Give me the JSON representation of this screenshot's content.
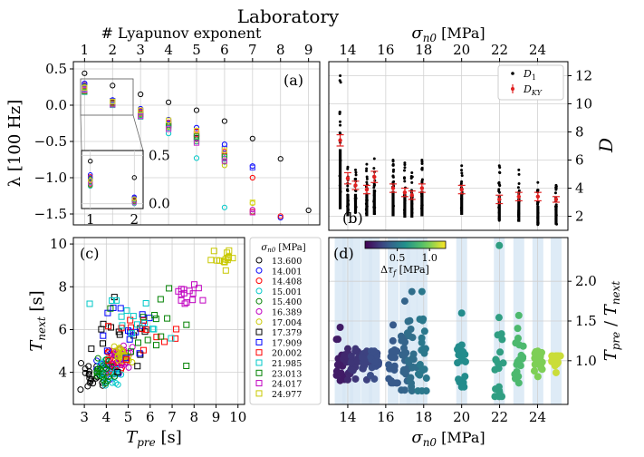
{
  "figure": {
    "supertitle": "Laboratory"
  },
  "chart_data": [
    {
      "panel": "(a)",
      "type": "scatter",
      "title": "",
      "xlabel": "# Lyapunov exponent",
      "ylabel": "λ [100 Hz]",
      "x_ticks": [
        "1",
        "2",
        "3",
        "4",
        "5",
        "6",
        "7",
        "8",
        "9"
      ],
      "y_ticks": [
        "0.5",
        "0.0",
        "−0.5",
        "−1.0",
        "−1.5"
      ],
      "xlim": [
        0.6,
        9.4
      ],
      "ylim": [
        -1.65,
        0.6
      ],
      "grid": true,
      "x": [
        1,
        2,
        3,
        4,
        5,
        6,
        7,
        8,
        9
      ],
      "series": [
        {
          "name": "13.600",
          "color": "#000000",
          "values": [
            0.44,
            0.27,
            0.15,
            0.04,
            -0.07,
            -0.22,
            -0.46,
            -0.74,
            -1.45
          ]
        },
        {
          "name": "14.001",
          "color": "#0000ff",
          "values": [
            0.3,
            0.07,
            -0.05,
            -0.2,
            -0.31,
            -0.54,
            -0.84,
            -1.55,
            null
          ]
        },
        {
          "name": "14.408",
          "color": "#ff0000",
          "values": [
            0.28,
            0.06,
            -0.08,
            -0.24,
            -0.36,
            -0.64,
            -1.0,
            -1.53,
            null
          ]
        },
        {
          "name": "15.001",
          "color": "#00c8c8",
          "values": [
            0.22,
            0.02,
            -0.14,
            -0.39,
            -0.73,
            -1.41,
            null,
            null,
            null
          ]
        },
        {
          "name": "15.400",
          "color": "#008000",
          "values": [
            0.26,
            0.05,
            -0.1,
            -0.28,
            -0.47,
            -0.78,
            -1.47,
            null,
            null
          ]
        },
        {
          "name": "16.389",
          "color": "#c000c0",
          "values": [
            0.23,
            0.03,
            -0.11,
            -0.27,
            -0.46,
            -0.73,
            -1.44,
            null,
            null
          ]
        },
        {
          "name": "17.004",
          "color": "#c8c800",
          "values": [
            0.25,
            0.04,
            -0.12,
            -0.3,
            -0.5,
            -0.83,
            -1.35,
            null,
            null
          ]
        },
        {
          "name": "17.379",
          "color": "#222222",
          "values": [
            0.24,
            0.04,
            -0.13,
            -0.28,
            -0.45,
            -0.68,
            null,
            null,
            null
          ]
        },
        {
          "name": "17.909",
          "color": "#3333ff",
          "values": [
            0.27,
            0.06,
            -0.09,
            -0.25,
            -0.4,
            -0.6,
            -0.86,
            null,
            null
          ]
        },
        {
          "name": "20.002",
          "color": "#ff3333",
          "values": [
            0.2,
            0.03,
            -0.1,
            -0.24,
            -0.4,
            -0.68,
            -1.47,
            null,
            null
          ]
        },
        {
          "name": "21.985",
          "color": "#33aaaa",
          "values": [
            0.18,
            0.0,
            -0.16,
            -0.31,
            -0.5,
            -0.74,
            null,
            null,
            null
          ]
        },
        {
          "name": "23.013",
          "color": "#22aa22",
          "values": [
            0.19,
            0.02,
            -0.13,
            -0.28,
            -0.43,
            -0.71,
            null,
            null,
            null
          ]
        },
        {
          "name": "24.017",
          "color": "#cc33cc",
          "values": [
            0.21,
            0.01,
            -0.15,
            -0.33,
            -0.52,
            -0.77,
            -1.48,
            null,
            null
          ]
        },
        {
          "name": "24.977",
          "color": "#dddd33",
          "values": [
            0.24,
            0.05,
            -0.07,
            -0.21,
            -0.35,
            -0.62,
            -1.34,
            null,
            null
          ]
        }
      ],
      "inset": {
        "x_ticks": [
          "1",
          "2"
        ],
        "y_ticks": [
          "0.5",
          "0.0"
        ],
        "xlim": [
          0.8,
          2.2
        ],
        "ylim": [
          -0.05,
          0.55
        ]
      }
    },
    {
      "panel": "(b)",
      "type": "scatter",
      "title": "",
      "xlabel": "σn0 [MPa]",
      "ylabel": "D",
      "x_ticks": [
        "14",
        "16",
        "18",
        "20",
        "22",
        "24"
      ],
      "y_ticks": [
        "2",
        "4",
        "6",
        "8",
        "10",
        "12"
      ],
      "xlim": [
        13.0,
        25.6
      ],
      "ylim": [
        1.0,
        13.0
      ],
      "grid": true,
      "legend": [
        "D1",
        "DKY"
      ],
      "legend_position": "top-right",
      "x": [
        13.6,
        14.001,
        14.408,
        15.001,
        15.4,
        16.389,
        17.004,
        17.379,
        17.909,
        20.002,
        21.985,
        23.013,
        24.017,
        24.977
      ],
      "d1_min": [
        2.5,
        2.0,
        2.2,
        2.0,
        2.1,
        2.0,
        1.9,
        1.9,
        2.0,
        2.1,
        1.7,
        1.6,
        1.4,
        1.4
      ],
      "d1_max": [
        12.0,
        5.5,
        5.3,
        5.7,
        6.1,
        6.0,
        5.8,
        5.1,
        6.0,
        5.6,
        5.6,
        5.3,
        4.4,
        4.2
      ],
      "dky": [
        7.4,
        4.7,
        4.2,
        3.9,
        4.8,
        4.0,
        3.7,
        3.5,
        4.0,
        3.9,
        3.2,
        3.4,
        3.4,
        3.2
      ],
      "dky_err": [
        0.4,
        0.4,
        0.3,
        0.3,
        0.4,
        0.3,
        0.3,
        0.3,
        0.3,
        0.3,
        0.3,
        0.3,
        0.3,
        0.2
      ]
    },
    {
      "panel": "(c)",
      "type": "scatter",
      "title": "",
      "xlabel": "Tpre [s]",
      "ylabel": "Tnext [s]",
      "x_ticks": [
        "3",
        "4",
        "5",
        "6",
        "7",
        "8",
        "9",
        "10"
      ],
      "y_ticks": [
        "4",
        "6",
        "8",
        "10"
      ],
      "xlim": [
        2.5,
        10.3
      ],
      "ylim": [
        2.5,
        10.3
      ],
      "grid": true,
      "legend_title": "σn0 [MPa]",
      "legend_position": "right",
      "series": [
        {
          "name": "13.600",
          "marker": "o",
          "color": "#000000",
          "cx": 3.2,
          "cy": 3.8,
          "sx": 0.5,
          "sy": 0.5
        },
        {
          "name": "14.001",
          "marker": "o",
          "color": "#0000ff",
          "cx": 4.1,
          "cy": 4.3,
          "sx": 0.5,
          "sy": 0.5
        },
        {
          "name": "14.408",
          "marker": "o",
          "color": "#ff0000",
          "cx": 4.4,
          "cy": 4.6,
          "sx": 0.5,
          "sy": 0.5
        },
        {
          "name": "15.001",
          "marker": "o",
          "color": "#00c8c8",
          "cx": 4.0,
          "cy": 4.0,
          "sx": 0.5,
          "sy": 0.5
        },
        {
          "name": "15.400",
          "marker": "o",
          "color": "#008000",
          "cx": 3.9,
          "cy": 4.1,
          "sx": 0.5,
          "sy": 0.5
        },
        {
          "name": "16.389",
          "marker": "o",
          "color": "#c000c0",
          "cx": 4.6,
          "cy": 4.7,
          "sx": 0.4,
          "sy": 0.4
        },
        {
          "name": "17.004",
          "marker": "o",
          "color": "#c8c800",
          "cx": 4.7,
          "cy": 4.8,
          "sx": 0.4,
          "sy": 0.4
        },
        {
          "name": "17.379",
          "marker": "s",
          "color": "#000000",
          "cx": 4.5,
          "cy": 5.8,
          "sx": 1.5,
          "sy": 1.4
        },
        {
          "name": "17.909",
          "marker": "s",
          "color": "#0000ff",
          "cx": 5.1,
          "cy": 6.0,
          "sx": 1.1,
          "sy": 1.3
        },
        {
          "name": "20.002",
          "marker": "s",
          "color": "#ff0000",
          "cx": 5.5,
          "cy": 6.0,
          "sx": 1.5,
          "sy": 1.5
        },
        {
          "name": "21.985",
          "marker": "s",
          "color": "#00c8c8",
          "cx": 5.4,
          "cy": 6.3,
          "sx": 2.0,
          "sy": 2.0
        },
        {
          "name": "23.013",
          "marker": "s",
          "color": "#008000",
          "cx": 6.3,
          "cy": 6.6,
          "sx": 1.6,
          "sy": 1.6
        },
        {
          "name": "24.017",
          "marker": "s",
          "color": "#c000c0",
          "cx": 7.8,
          "cy": 7.6,
          "sx": 0.5,
          "sy": 0.5
        },
        {
          "name": "24.977",
          "marker": "s",
          "color": "#c8c800",
          "cx": 9.3,
          "cy": 9.3,
          "sx": 0.4,
          "sy": 0.4
        }
      ]
    },
    {
      "panel": "(d)",
      "type": "scatter",
      "title": "",
      "xlabel": "σn0 [MPa]",
      "ylabel": "Tpre / Tnext",
      "x_ticks": [
        "14",
        "16",
        "18",
        "20",
        "22",
        "24"
      ],
      "y_ticks": [
        "1.0",
        "1.5",
        "2.0"
      ],
      "xlim": [
        13.0,
        25.6
      ],
      "ylim": [
        0.45,
        2.55
      ],
      "grid": true,
      "colorbar_label": "Δτf [MPa]",
      "colorbar_ticks": [
        "0.5",
        "1.0"
      ],
      "colorbar_range": [
        0.0,
        1.25
      ],
      "x": [
        13.6,
        14.001,
        14.408,
        15.001,
        15.4,
        16.389,
        17.004,
        17.379,
        17.909,
        20.002,
        21.985,
        23.013,
        24.017,
        24.977
      ],
      "ratio_min": [
        0.75,
        0.76,
        0.77,
        0.76,
        0.77,
        0.72,
        0.63,
        0.62,
        0.62,
        0.67,
        0.55,
        0.72,
        0.8,
        0.85
      ],
      "ratio_max": [
        1.42,
        1.15,
        1.15,
        1.12,
        1.12,
        1.45,
        1.75,
        1.87,
        1.87,
        1.6,
        2.45,
        1.57,
        1.12,
        1.06
      ],
      "delta_tau_f": [
        0.1,
        0.15,
        0.2,
        0.25,
        0.3,
        0.35,
        0.4,
        0.45,
        0.5,
        0.6,
        0.7,
        0.85,
        1.0,
        1.15
      ]
    }
  ]
}
